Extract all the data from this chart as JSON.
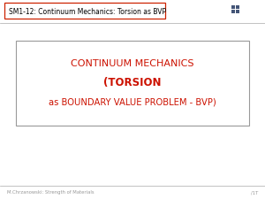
{
  "bg_color": "#ffffff",
  "header_text": "SM1-12: Continuum Mechanics: Torsion as BVP",
  "header_color": "#000000",
  "header_bg": "#ffffff",
  "header_border_color": "#cc2200",
  "title_line1": "CONTINUUM MECHANICS",
  "title_line2": "(TORSION",
  "title_line3": "as BOUNDARY VALUE PROBLEM - BVP)",
  "title_color": "#cc1100",
  "footer_left": "M.Chrzanowski: Strength of Materials",
  "footer_right": "/1T",
  "footer_color": "#999999",
  "separator_color": "#aaaaaa",
  "box_edge_color": "#999999",
  "logo_color": "#445577"
}
